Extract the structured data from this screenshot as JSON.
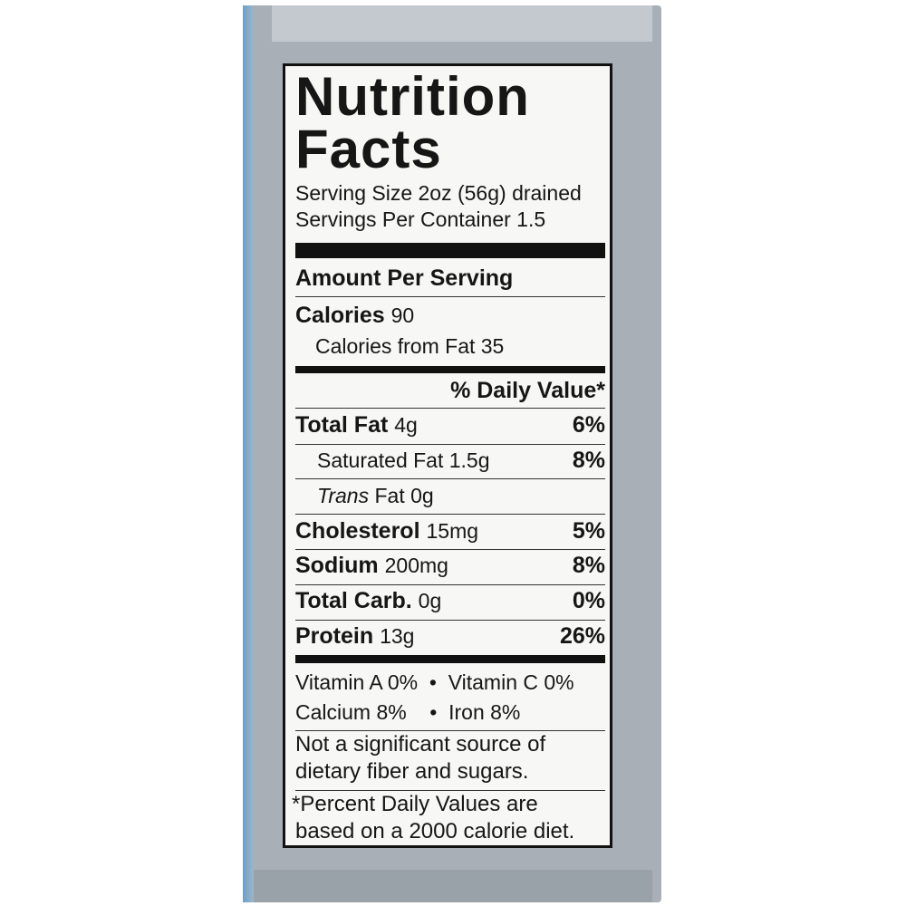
{
  "label": {
    "title_line1": "Nutrition",
    "title_line2": "Facts",
    "serving_size": "Serving Size  2oz (56g) drained",
    "servings_per_container": "Servings Per Container 1.5",
    "amount_per_serving": "Amount Per Serving",
    "calories_label": "Calories",
    "calories_value": "90",
    "calories_from_fat": "Calories from Fat 35",
    "daily_value_header": "% Daily Value*",
    "nutrients": [
      {
        "name": "Total Fat",
        "amount": "4g",
        "dv": "6%"
      },
      {
        "name": "Saturated Fat",
        "amount": "1.5g",
        "dv": "8%"
      },
      {
        "name": "Trans",
        "amount": "Fat 0g",
        "dv": ""
      },
      {
        "name": "Cholesterol",
        "amount": "15mg",
        "dv": "5%"
      },
      {
        "name": "Sodium",
        "amount": "200mg",
        "dv": "8%"
      },
      {
        "name": "Total Carb.",
        "amount": "0g",
        "dv": "0%"
      },
      {
        "name": "Protein",
        "amount": "13g",
        "dv": "26%"
      }
    ],
    "vitamins_line1": "Vitamin A 0%  •  Vitamin C 0%",
    "vitamins_line2": "Calcium 8%    •  Iron 8%",
    "note_line1": "Not a significant source of",
    "note_line2": "dietary fiber and sugars.",
    "footnote_line1": "*Percent Daily Values are",
    "footnote_line2": "based on a 2000 calorie diet."
  }
}
